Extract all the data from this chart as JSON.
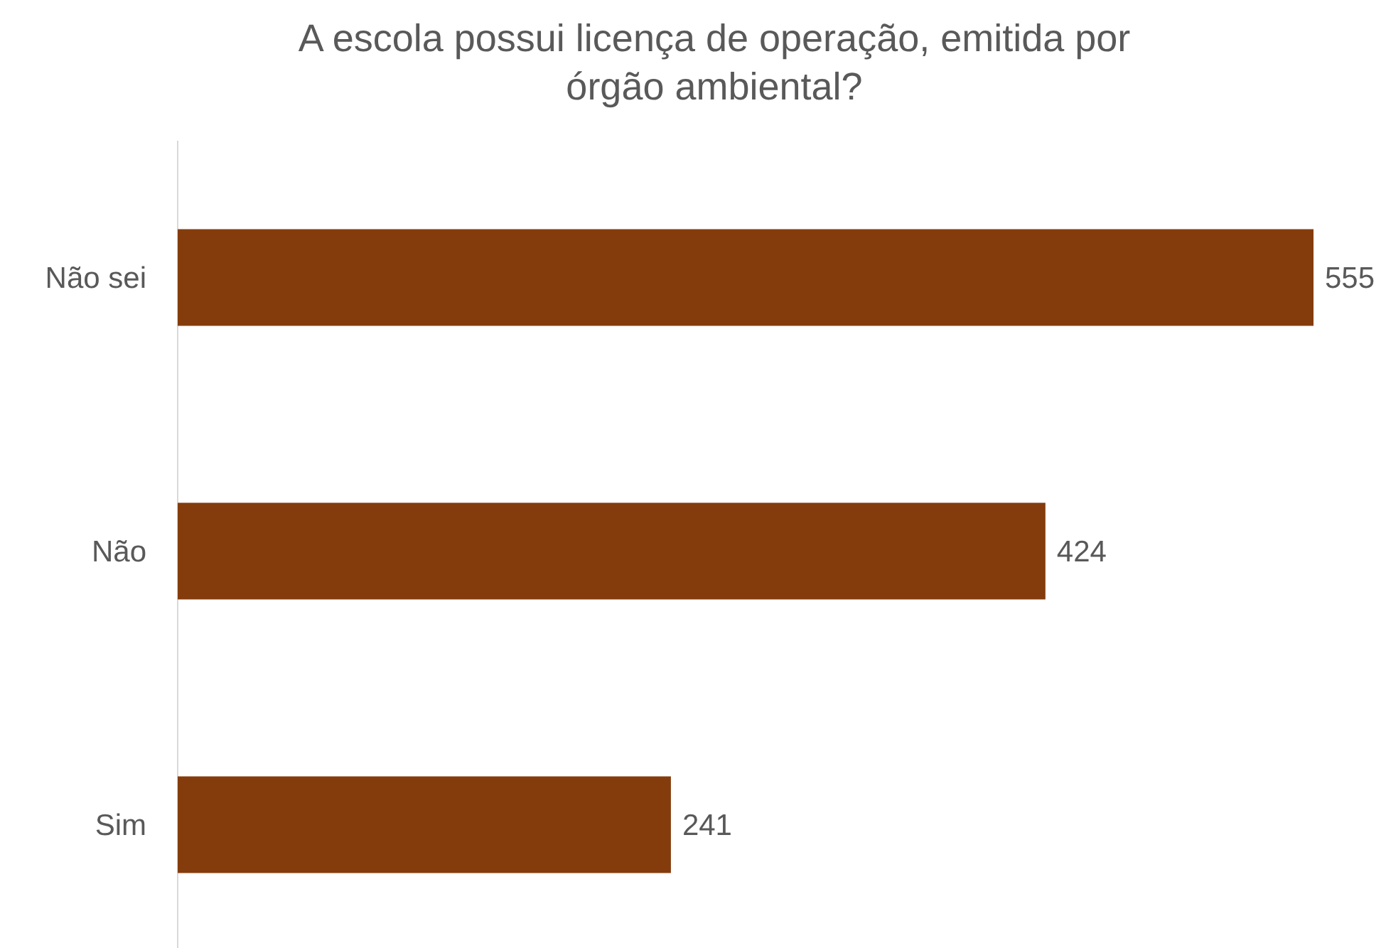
{
  "chart_data": {
    "type": "bar",
    "orientation": "horizontal",
    "title": "A escola possui licença de operação, emitida por órgão ambiental?",
    "categories": [
      "Não sei",
      "Não",
      "Sim"
    ],
    "values": [
      555,
      424,
      241
    ],
    "color": "#843c0c",
    "data_labels": true,
    "tick_labels": "y"
  }
}
